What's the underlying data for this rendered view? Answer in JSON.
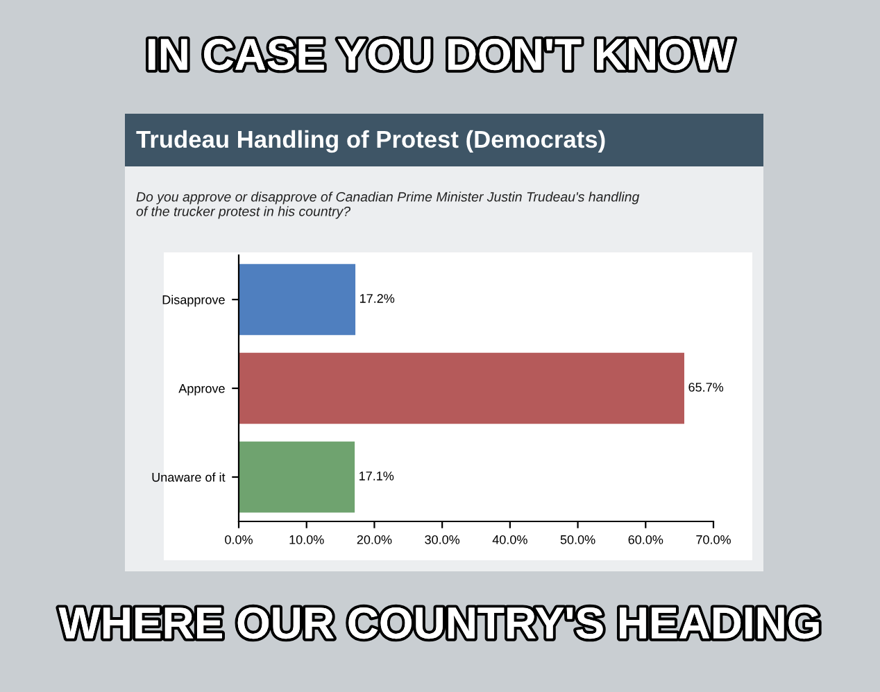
{
  "chart_data": {
    "type": "bar",
    "orientation": "horizontal",
    "title": "Trudeau Handling of Protest (Democrats)",
    "subtitle": "Do you approve or disapprove of Canadian Prime Minister Justin Trudeau's handling\nof the trucker protest in his country?",
    "annotations": [
      "IN CASE YOU DON'T KNOW",
      "WHERE OUR COUNTRY'S HEADING"
    ],
    "categories": [
      "Disapprove",
      "Approve",
      "Unaware of it"
    ],
    "values": [
      17.2,
      65.7,
      17.1
    ],
    "colors": [
      "#4f7fbf",
      "#b55a5a",
      "#6fa36f"
    ],
    "value_labels": [
      "17.2%",
      "65.7%",
      "17.1%"
    ],
    "xlim": [
      0,
      70
    ],
    "xticks": [
      {
        "value": 0,
        "label": "0.0%"
      },
      {
        "value": 10,
        "label": "10.0%"
      },
      {
        "value": 20,
        "label": "20.0%"
      },
      {
        "value": 30,
        "label": "30.0%"
      },
      {
        "value": 40,
        "label": "40.0%"
      },
      {
        "value": 50,
        "label": "50.0%"
      },
      {
        "value": 60,
        "label": "60.0%"
      },
      {
        "value": 70,
        "label": "70.0%"
      }
    ],
    "grid": false,
    "legend": false
  }
}
